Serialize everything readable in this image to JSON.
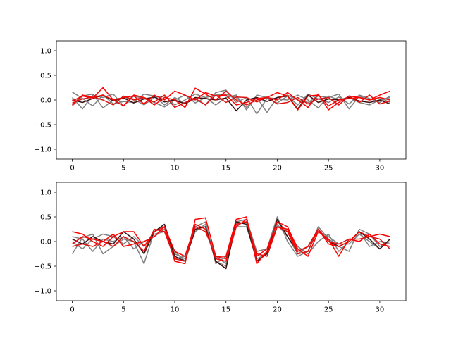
{
  "colors": {
    "gray": "#808080",
    "dark": "#3a1010",
    "red": "#ff0000",
    "red_alt": "#e01010"
  },
  "chart_data": [
    {
      "type": "line",
      "title": "",
      "xlabel": "",
      "ylabel": "",
      "xlim": [
        -1.55,
        32.55
      ],
      "ylim": [
        -1.2,
        1.2
      ],
      "xticks": [
        0,
        5,
        10,
        15,
        20,
        25,
        30
      ],
      "yticks": [
        -1.0,
        -0.5,
        0.0,
        0.5,
        1.0
      ],
      "ytick_labels": [
        "−1.0",
        "−0.5",
        "0.0",
        "0.5",
        "1.0"
      ],
      "grid": false,
      "series": [
        {
          "color": "#808080",
          "values": [
            0.16,
            0.03,
            -0.12,
            0.1,
            -0.08,
            -0.03,
            -0.05,
            0.12,
            0.08,
            -0.1,
            0.05,
            -0.07,
            0.02,
            -0.1,
            0.15,
            0.2,
            -0.05,
            0.05,
            -0.28,
            0.03,
            -0.06,
            0.08,
            -0.1,
            0.12,
            0.02,
            -0.05,
            0.06,
            -0.08,
            0.1,
            0.03,
            -0.05,
            0.08
          ]
        },
        {
          "color": "#808080",
          "values": [
            0.05,
            -0.18,
            0.1,
            0.05,
            0.12,
            -0.12,
            0.08,
            0.03,
            -0.05,
            -0.14,
            0.0,
            0.1,
            -0.06,
            0.05,
            0.1,
            0.12,
            0.05,
            -0.15,
            0.05,
            -0.25,
            0.05,
            0.1,
            0.0,
            -0.05,
            0.08,
            0.05,
            0.12,
            -0.18,
            0.08,
            0.0,
            0.05,
            -0.05
          ]
        },
        {
          "color": "#808080",
          "values": [
            -0.12,
            0.08,
            0.12,
            -0.16,
            0.0,
            0.05,
            0.02,
            -0.1,
            0.05,
            0.08,
            -0.1,
            0.0,
            0.12,
            0.05,
            -0.1,
            0.05,
            0.1,
            -0.2,
            0.1,
            0.05,
            0.02,
            0.0,
            0.1,
            0.0,
            -0.16,
            0.08,
            0.0,
            0.05,
            -0.05,
            -0.1,
            0.0,
            0.05
          ]
        },
        {
          "color": "#3a1010",
          "values": [
            0.0,
            -0.05,
            0.03,
            0.1,
            -0.02,
            0.04,
            -0.06,
            0.02,
            0.06,
            -0.04,
            0.0,
            -0.08,
            0.05,
            0.03,
            0.0,
            0.04,
            -0.22,
            0.0,
            0.05,
            -0.03,
            0.05,
            0.08,
            -0.18,
            0.1,
            -0.05,
            0.02,
            0.0,
            0.05,
            -0.02,
            -0.05,
            0.0,
            -0.08
          ]
        },
        {
          "color": "#ff0000",
          "values": [
            -0.1,
            0.1,
            0.05,
            0.1,
            0.0,
            0.05,
            0.08,
            -0.08,
            0.1,
            0.0,
            0.18,
            0.1,
            0.0,
            0.15,
            0.08,
            0.1,
            -0.1,
            -0.05,
            0.03,
            0.05,
            0.15,
            0.08,
            -0.2,
            0.08,
            0.1,
            -0.12,
            0.0,
            0.03,
            0.05,
            0.0,
            0.1,
            0.18
          ]
        },
        {
          "color": "#ff0000",
          "values": [
            -0.02,
            0.08,
            0.04,
            0.25,
            0.0,
            -0.12,
            0.1,
            0.05,
            -0.1,
            0.05,
            0.0,
            -0.15,
            0.24,
            0.12,
            0.0,
            0.18,
            0.0,
            -0.1,
            0.0,
            0.05,
            0.0,
            0.15,
            0.0,
            -0.15,
            0.12,
            -0.2,
            -0.05,
            0.08,
            0.05,
            0.0,
            0.05,
            0.0
          ]
        },
        {
          "color": "#e01010",
          "values": [
            -0.06,
            0.02,
            0.06,
            0.0,
            -0.1,
            0.08,
            0.0,
            0.05,
            -0.04,
            0.1,
            -0.15,
            -0.05,
            0.03,
            -0.1,
            0.1,
            -0.05,
            0.06,
            0.05,
            -0.04,
            0.06,
            -0.08,
            -0.05,
            0.05,
            -0.08,
            0.02,
            0.05,
            -0.1,
            0.08,
            -0.05,
            0.1,
            -0.08,
            -0.02
          ]
        }
      ]
    },
    {
      "type": "line",
      "title": "",
      "xlabel": "",
      "ylabel": "",
      "xlim": [
        -1.55,
        32.55
      ],
      "ylim": [
        -1.2,
        1.2
      ],
      "xticks": [
        0,
        5,
        10,
        15,
        20,
        25,
        30
      ],
      "yticks": [
        -1.0,
        -0.5,
        0.0,
        0.5,
        1.0
      ],
      "ytick_labels": [
        "−1.0",
        "−0.5",
        "0.0",
        "0.5",
        "1.0"
      ],
      "grid": false,
      "series": [
        {
          "color": "#808080",
          "values": [
            -0.25,
            0.08,
            0.15,
            -0.25,
            -0.1,
            0.05,
            0.0,
            -0.45,
            0.2,
            0.3,
            -0.35,
            -0.3,
            0.3,
            0.4,
            -0.45,
            -0.3,
            0.4,
            0.45,
            -0.2,
            -0.15,
            0.5,
            0.0,
            -0.3,
            -0.2,
            0.3,
            0.05,
            -0.1,
            -0.2,
            0.25,
            0.15,
            -0.1,
            0.0
          ]
        },
        {
          "color": "#808080",
          "values": [
            0.0,
            -0.15,
            0.05,
            0.15,
            0.1,
            -0.05,
            0.1,
            -0.1,
            0.15,
            0.2,
            -0.2,
            -0.4,
            0.25,
            0.3,
            -0.3,
            -0.45,
            0.3,
            0.3,
            -0.35,
            -0.25,
            0.35,
            0.1,
            -0.25,
            -0.1,
            0.2,
            0.1,
            -0.05,
            -0.05,
            0.15,
            0.0,
            -0.15,
            0.05
          ]
        },
        {
          "color": "#808080",
          "values": [
            0.1,
            0.05,
            -0.2,
            0.05,
            0.0,
            0.1,
            -0.15,
            0.0,
            0.1,
            0.25,
            -0.25,
            -0.35,
            0.2,
            0.35,
            -0.4,
            -0.5,
            0.35,
            0.4,
            -0.4,
            -0.2,
            0.4,
            0.2,
            -0.1,
            -0.25,
            0.0,
            0.15,
            -0.2,
            0.0,
            0.2,
            -0.1,
            0.0,
            -0.05
          ]
        },
        {
          "color": "#3a1010",
          "values": [
            0.05,
            -0.05,
            0.1,
            0.0,
            -0.05,
            0.2,
            0.05,
            -0.25,
            0.2,
            0.35,
            -0.3,
            -0.4,
            0.25,
            0.3,
            -0.4,
            -0.55,
            0.4,
            0.35,
            -0.4,
            -0.25,
            0.45,
            0.1,
            -0.2,
            -0.1,
            0.25,
            0.0,
            -0.1,
            0.0,
            0.2,
            0.05,
            -0.15,
            0.05
          ]
        },
        {
          "color": "#ff0000",
          "values": [
            0.2,
            0.15,
            0.0,
            -0.1,
            0.1,
            0.2,
            0.2,
            -0.1,
            0.2,
            0.3,
            -0.4,
            -0.45,
            0.45,
            0.48,
            -0.3,
            -0.3,
            0.45,
            0.5,
            -0.45,
            -0.2,
            0.3,
            0.25,
            -0.2,
            -0.1,
            0.25,
            -0.05,
            -0.1,
            0.0,
            0.2,
            0.1,
            0.15,
            0.1
          ]
        },
        {
          "color": "#ff0000",
          "values": [
            -0.05,
            0.1,
            0.05,
            0.0,
            0.15,
            -0.1,
            -0.05,
            0.0,
            0.1,
            0.3,
            -0.2,
            -0.3,
            0.35,
            0.25,
            -0.35,
            -0.4,
            0.3,
            0.45,
            -0.3,
            -0.15,
            0.4,
            0.3,
            -0.15,
            -0.3,
            0.2,
            0.05,
            -0.3,
            0.05,
            0.0,
            0.15,
            -0.05,
            -0.1
          ]
        },
        {
          "color": "#e01010",
          "values": [
            -0.1,
            -0.05,
            -0.1,
            0.0,
            -0.1,
            0.1,
            0.0,
            -0.2,
            0.25,
            0.2,
            -0.35,
            -0.4,
            0.3,
            0.2,
            -0.3,
            -0.35,
            0.35,
            0.4,
            -0.25,
            -0.3,
            0.3,
            0.2,
            -0.25,
            -0.2,
            0.25,
            0.0,
            -0.05,
            0.05,
            0.05,
            0.1,
            0.05,
            -0.15
          ]
        }
      ]
    }
  ]
}
